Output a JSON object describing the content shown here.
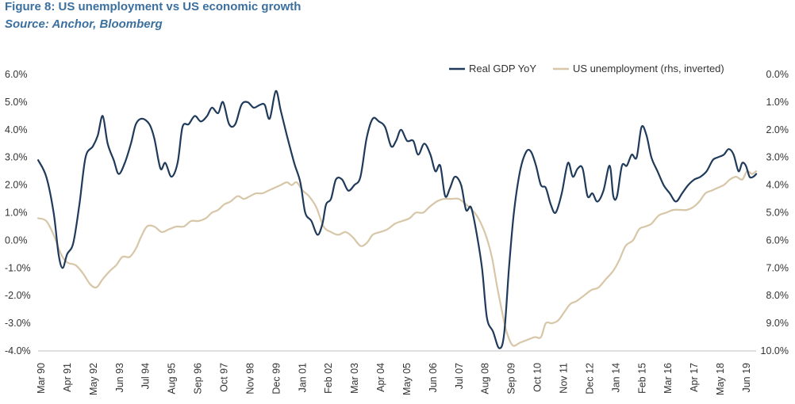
{
  "title": "Figure 8: US unemployment vs US economic growth",
  "subtitle": "Source: Anchor, Bloomberg",
  "chart_data": {
    "type": "line",
    "title": "Figure 8: US unemployment vs US economic growth",
    "subtitle": "Source: Anchor, Bloomberg",
    "x_tick_labels": [
      "Mar 90",
      "Apr 91",
      "May 92",
      "Jun 93",
      "Jul 94",
      "Aug 95",
      "Sep 96",
      "Oct 97",
      "Nov 98",
      "Dec 99",
      "Jan 01",
      "Feb 02",
      "Mar 03",
      "Apr 04",
      "May 05",
      "Jun 06",
      "Jul 07",
      "Aug 08",
      "Sep 09",
      "Oct 10",
      "Nov 11",
      "Dec 12",
      "Jan 14",
      "Feb 15",
      "Mar 16",
      "Apr 17",
      "May 18",
      "Jun 19"
    ],
    "y_left_ticks": [
      "6.0%",
      "5.0%",
      "4.0%",
      "3.0%",
      "2.0%",
      "1.0%",
      "0.0%",
      "-1.0%",
      "-2.0%",
      "-3.0%",
      "-4.0%"
    ],
    "y_right_ticks": [
      "0.0%",
      "1.0%",
      "2.0%",
      "3.0%",
      "4.0%",
      "5.0%",
      "6.0%",
      "7.0%",
      "8.0%",
      "9.0%",
      "10.0%"
    ],
    "xlim": [
      1990.167,
      2019.417
    ],
    "ylim_left": [
      -4,
      6
    ],
    "ylim_right_inverted": [
      0,
      10
    ],
    "legend_position": "top-right",
    "grid": false,
    "series": [
      {
        "name": "Real GDP YoY",
        "axis": "left",
        "color": "#1f3a5a",
        "points": [
          [
            1990.17,
            2.9
          ],
          [
            1990.5,
            2.3
          ],
          [
            1990.8,
            1.0
          ],
          [
            1991.0,
            -0.5
          ],
          [
            1991.17,
            -1.0
          ],
          [
            1991.35,
            -0.5
          ],
          [
            1991.6,
            -0.1
          ],
          [
            1991.85,
            1.3
          ],
          [
            1992.1,
            3.0
          ],
          [
            1992.4,
            3.4
          ],
          [
            1992.6,
            3.8
          ],
          [
            1992.8,
            4.5
          ],
          [
            1993.0,
            3.5
          ],
          [
            1993.25,
            2.9
          ],
          [
            1993.45,
            2.4
          ],
          [
            1993.7,
            2.8
          ],
          [
            1993.95,
            3.5
          ],
          [
            1994.15,
            4.2
          ],
          [
            1994.4,
            4.4
          ],
          [
            1994.7,
            4.2
          ],
          [
            1994.9,
            3.7
          ],
          [
            1995.15,
            2.6
          ],
          [
            1995.35,
            2.8
          ],
          [
            1995.6,
            2.3
          ],
          [
            1995.85,
            2.8
          ],
          [
            1996.05,
            4.1
          ],
          [
            1996.3,
            4.2
          ],
          [
            1996.55,
            4.5
          ],
          [
            1996.8,
            4.3
          ],
          [
            1997.05,
            4.5
          ],
          [
            1997.25,
            4.8
          ],
          [
            1997.5,
            4.6
          ],
          [
            1997.7,
            5.0
          ],
          [
            1997.95,
            4.2
          ],
          [
            1998.2,
            4.2
          ],
          [
            1998.45,
            4.9
          ],
          [
            1998.7,
            5.0
          ],
          [
            1998.95,
            4.8
          ],
          [
            1999.2,
            4.9
          ],
          [
            1999.4,
            4.9
          ],
          [
            1999.6,
            4.4
          ],
          [
            1999.85,
            5.4
          ],
          [
            2000.05,
            4.7
          ],
          [
            2000.3,
            3.8
          ],
          [
            2000.6,
            2.8
          ],
          [
            2000.85,
            2.1
          ],
          [
            2001.05,
            1.0
          ],
          [
            2001.3,
            0.7
          ],
          [
            2001.55,
            0.2
          ],
          [
            2001.75,
            0.6
          ],
          [
            2001.9,
            1.3
          ],
          [
            2002.1,
            1.5
          ],
          [
            2002.3,
            2.2
          ],
          [
            2002.55,
            2.2
          ],
          [
            2002.8,
            1.8
          ],
          [
            2003.05,
            2.0
          ],
          [
            2003.3,
            2.3
          ],
          [
            2003.55,
            3.7
          ],
          [
            2003.8,
            4.4
          ],
          [
            2004.05,
            4.3
          ],
          [
            2004.3,
            4.1
          ],
          [
            2004.55,
            3.4
          ],
          [
            2004.75,
            3.6
          ],
          [
            2004.95,
            4.0
          ],
          [
            2005.2,
            3.6
          ],
          [
            2005.45,
            3.6
          ],
          [
            2005.65,
            3.1
          ],
          [
            2005.9,
            3.5
          ],
          [
            2006.15,
            3.1
          ],
          [
            2006.35,
            2.5
          ],
          [
            2006.55,
            2.7
          ],
          [
            2006.75,
            1.6
          ],
          [
            2006.95,
            1.9
          ],
          [
            2007.15,
            2.3
          ],
          [
            2007.4,
            2.0
          ],
          [
            2007.6,
            1.1
          ],
          [
            2007.8,
            1.2
          ],
          [
            2008.0,
            0.4
          ],
          [
            2008.25,
            -1.0
          ],
          [
            2008.45,
            -2.8
          ],
          [
            2008.7,
            -3.3
          ],
          [
            2008.95,
            -3.9
          ],
          [
            2009.15,
            -3.4
          ],
          [
            2009.35,
            -1.0
          ],
          [
            2009.55,
            1.0
          ],
          [
            2009.8,
            2.5
          ],
          [
            2010.05,
            3.2
          ],
          [
            2010.25,
            3.2
          ],
          [
            2010.45,
            2.7
          ],
          [
            2010.65,
            2.0
          ],
          [
            2010.85,
            1.9
          ],
          [
            2011.05,
            1.3
          ],
          [
            2011.25,
            1.0
          ],
          [
            2011.5,
            1.7
          ],
          [
            2011.75,
            2.8
          ],
          [
            2011.95,
            2.3
          ],
          [
            2012.15,
            2.6
          ],
          [
            2012.35,
            2.6
          ],
          [
            2012.55,
            1.6
          ],
          [
            2012.75,
            1.7
          ],
          [
            2012.95,
            1.4
          ],
          [
            2013.2,
            1.8
          ],
          [
            2013.45,
            2.7
          ],
          [
            2013.6,
            1.6
          ],
          [
            2013.75,
            1.6
          ],
          [
            2013.95,
            2.7
          ],
          [
            2014.15,
            2.7
          ],
          [
            2014.35,
            3.1
          ],
          [
            2014.55,
            3.0
          ],
          [
            2014.75,
            4.1
          ],
          [
            2014.95,
            3.8
          ],
          [
            2015.15,
            3.0
          ],
          [
            2015.4,
            2.5
          ],
          [
            2015.65,
            2.0
          ],
          [
            2015.9,
            1.7
          ],
          [
            2016.15,
            1.4
          ],
          [
            2016.4,
            1.7
          ],
          [
            2016.65,
            2.0
          ],
          [
            2016.9,
            2.2
          ],
          [
            2017.15,
            2.3
          ],
          [
            2017.4,
            2.5
          ],
          [
            2017.65,
            2.9
          ],
          [
            2017.85,
            3.0
          ],
          [
            2018.1,
            3.1
          ],
          [
            2018.3,
            3.3
          ],
          [
            2018.5,
            3.1
          ],
          [
            2018.7,
            2.5
          ],
          [
            2018.85,
            2.8
          ],
          [
            2019.0,
            2.7
          ],
          [
            2019.15,
            2.3
          ],
          [
            2019.3,
            2.3
          ],
          [
            2019.42,
            2.4
          ]
        ]
      },
      {
        "name": "US unemployment (rhs, inverted)",
        "axis": "right",
        "color": "#d7c6a7",
        "points": [
          [
            1990.17,
            5.2
          ],
          [
            1990.5,
            5.3
          ],
          [
            1990.8,
            5.8
          ],
          [
            1991.1,
            6.5
          ],
          [
            1991.35,
            6.8
          ],
          [
            1991.7,
            6.9
          ],
          [
            1992.0,
            7.2
          ],
          [
            1992.3,
            7.6
          ],
          [
            1992.55,
            7.7
          ],
          [
            1992.8,
            7.4
          ],
          [
            1993.1,
            7.1
          ],
          [
            1993.35,
            6.9
          ],
          [
            1993.6,
            6.6
          ],
          [
            1993.9,
            6.6
          ],
          [
            1994.15,
            6.3
          ],
          [
            1994.35,
            5.9
          ],
          [
            1994.6,
            5.5
          ],
          [
            1994.9,
            5.5
          ],
          [
            1995.2,
            5.7
          ],
          [
            1995.5,
            5.6
          ],
          [
            1995.8,
            5.5
          ],
          [
            1996.1,
            5.5
          ],
          [
            1996.4,
            5.3
          ],
          [
            1996.7,
            5.3
          ],
          [
            1997.0,
            5.2
          ],
          [
            1997.25,
            5.0
          ],
          [
            1997.5,
            4.9
          ],
          [
            1997.75,
            4.7
          ],
          [
            1998.0,
            4.6
          ],
          [
            1998.3,
            4.4
          ],
          [
            1998.55,
            4.5
          ],
          [
            1998.8,
            4.4
          ],
          [
            1999.05,
            4.3
          ],
          [
            1999.3,
            4.3
          ],
          [
            1999.55,
            4.2
          ],
          [
            1999.8,
            4.1
          ],
          [
            2000.05,
            4.0
          ],
          [
            2000.3,
            3.9
          ],
          [
            2000.5,
            4.0
          ],
          [
            2000.7,
            3.9
          ],
          [
            2000.95,
            4.2
          ],
          [
            2001.2,
            4.4
          ],
          [
            2001.5,
            4.8
          ],
          [
            2001.8,
            5.5
          ],
          [
            2002.1,
            5.7
          ],
          [
            2002.4,
            5.8
          ],
          [
            2002.7,
            5.7
          ],
          [
            2003.0,
            5.9
          ],
          [
            2003.3,
            6.2
          ],
          [
            2003.55,
            6.1
          ],
          [
            2003.8,
            5.8
          ],
          [
            2004.1,
            5.7
          ],
          [
            2004.4,
            5.6
          ],
          [
            2004.7,
            5.4
          ],
          [
            2005.0,
            5.3
          ],
          [
            2005.3,
            5.2
          ],
          [
            2005.55,
            5.0
          ],
          [
            2005.85,
            5.0
          ],
          [
            2006.1,
            4.8
          ],
          [
            2006.4,
            4.6
          ],
          [
            2006.7,
            4.5
          ],
          [
            2007.0,
            4.5
          ],
          [
            2007.3,
            4.5
          ],
          [
            2007.6,
            4.7
          ],
          [
            2007.85,
            4.9
          ],
          [
            2008.1,
            5.2
          ],
          [
            2008.4,
            5.8
          ],
          [
            2008.65,
            6.6
          ],
          [
            2008.85,
            7.6
          ],
          [
            2009.05,
            8.5
          ],
          [
            2009.25,
            9.3
          ],
          [
            2009.5,
            9.8
          ],
          [
            2009.8,
            9.7
          ],
          [
            2010.1,
            9.6
          ],
          [
            2010.4,
            9.5
          ],
          [
            2010.65,
            9.5
          ],
          [
            2010.85,
            9.0
          ],
          [
            2011.1,
            9.0
          ],
          [
            2011.35,
            8.9
          ],
          [
            2011.6,
            8.6
          ],
          [
            2011.85,
            8.3
          ],
          [
            2012.1,
            8.2
          ],
          [
            2012.4,
            8.0
          ],
          [
            2012.7,
            7.8
          ],
          [
            2013.0,
            7.7
          ],
          [
            2013.3,
            7.4
          ],
          [
            2013.6,
            7.1
          ],
          [
            2013.85,
            6.7
          ],
          [
            2014.1,
            6.2
          ],
          [
            2014.4,
            6.0
          ],
          [
            2014.65,
            5.6
          ],
          [
            2014.9,
            5.5
          ],
          [
            2015.15,
            5.4
          ],
          [
            2015.45,
            5.1
          ],
          [
            2015.75,
            5.0
          ],
          [
            2016.05,
            4.9
          ],
          [
            2016.35,
            4.9
          ],
          [
            2016.6,
            4.9
          ],
          [
            2016.85,
            4.8
          ],
          [
            2017.1,
            4.6
          ],
          [
            2017.35,
            4.3
          ],
          [
            2017.6,
            4.2
          ],
          [
            2017.85,
            4.1
          ],
          [
            2018.1,
            4.0
          ],
          [
            2018.35,
            3.8
          ],
          [
            2018.6,
            3.7
          ],
          [
            2018.85,
            3.8
          ],
          [
            2019.05,
            3.5
          ],
          [
            2019.25,
            3.6
          ],
          [
            2019.42,
            3.5
          ]
        ]
      }
    ]
  }
}
